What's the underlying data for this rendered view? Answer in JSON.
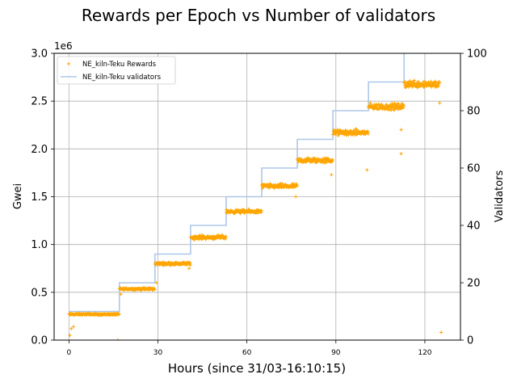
{
  "chart_data": {
    "type": "scatter",
    "title": "Rewards per Epoch vs Number of validators",
    "xlabel": "Hours (since 31/03-16:10:15)",
    "ylabel": "Gwei",
    "y2label": "Validators",
    "y_multiplier_label": "1e6",
    "xlim": [
      -5,
      132
    ],
    "ylim": [
      0,
      3.0
    ],
    "y2lim": [
      0,
      100
    ],
    "xticks": [
      0,
      30,
      60,
      90,
      120
    ],
    "xtick_labels": [
      "0",
      "30",
      "60",
      "90",
      "120"
    ],
    "yticks": [
      0,
      0.5,
      1.0,
      1.5,
      2.0,
      2.5,
      3.0
    ],
    "ytick_labels": [
      "0.0",
      "0.5",
      "1.0",
      "1.5",
      "2.0",
      "2.5",
      "3.0"
    ],
    "y2ticks": [
      0,
      20,
      40,
      60,
      80,
      100
    ],
    "y2tick_labels": [
      "0",
      "20",
      "40",
      "60",
      "80",
      "100"
    ],
    "grid": true,
    "legend_position": "top-left",
    "series": [
      {
        "name": "NE_kiln-Teku Rewards",
        "kind": "scatter",
        "axis": "left",
        "color": "#ffa500",
        "marker": "+",
        "segments": [
          {
            "x_start": 0,
            "x_end": 17,
            "mean": 0.27,
            "spread": 0.012
          },
          {
            "x_start": 17,
            "x_end": 29,
            "mean": 0.535,
            "spread": 0.018
          },
          {
            "x_start": 29,
            "x_end": 41,
            "mean": 0.8,
            "spread": 0.022
          },
          {
            "x_start": 41,
            "x_end": 53,
            "mean": 1.075,
            "spread": 0.03
          },
          {
            "x_start": 53,
            "x_end": 65,
            "mean": 1.345,
            "spread": 0.028
          },
          {
            "x_start": 65,
            "x_end": 77,
            "mean": 1.61,
            "spread": 0.035
          },
          {
            "x_start": 77,
            "x_end": 89,
            "mean": 1.88,
            "spread": 0.04
          },
          {
            "x_start": 89,
            "x_end": 101,
            "mean": 2.17,
            "spread": 0.045
          },
          {
            "x_start": 101,
            "x_end": 113,
            "mean": 2.44,
            "spread": 0.05
          },
          {
            "x_start": 113,
            "x_end": 125,
            "mean": 2.68,
            "spread": 0.06
          }
        ],
        "outliers": [
          {
            "x": 0.3,
            "y": 0.05
          },
          {
            "x": 0.8,
            "y": 0.12
          },
          {
            "x": 1.5,
            "y": 0.14
          },
          {
            "x": 16.5,
            "y": 0.0
          },
          {
            "x": 17.5,
            "y": 0.48
          },
          {
            "x": 29.5,
            "y": 0.6
          },
          {
            "x": 40.5,
            "y": 0.75
          },
          {
            "x": 76.5,
            "y": 1.5
          },
          {
            "x": 88.5,
            "y": 1.73
          },
          {
            "x": 100.5,
            "y": 1.78
          },
          {
            "x": 112,
            "y": 1.95
          },
          {
            "x": 112,
            "y": 2.2
          },
          {
            "x": 125,
            "y": 2.48
          },
          {
            "x": 125.5,
            "y": 0.08
          }
        ]
      },
      {
        "name": "NE_kiln-Teku validators",
        "kind": "step",
        "axis": "right",
        "color": "#aec7e8",
        "x": [
          0,
          17,
          17,
          29,
          29,
          41,
          41,
          53,
          53,
          65,
          65,
          77,
          77,
          89,
          89,
          101,
          101,
          113,
          113
        ],
        "y": [
          10,
          10,
          20,
          20,
          30,
          30,
          40,
          40,
          50,
          50,
          60,
          60,
          70,
          70,
          80,
          80,
          90,
          90,
          100
        ]
      }
    ]
  }
}
